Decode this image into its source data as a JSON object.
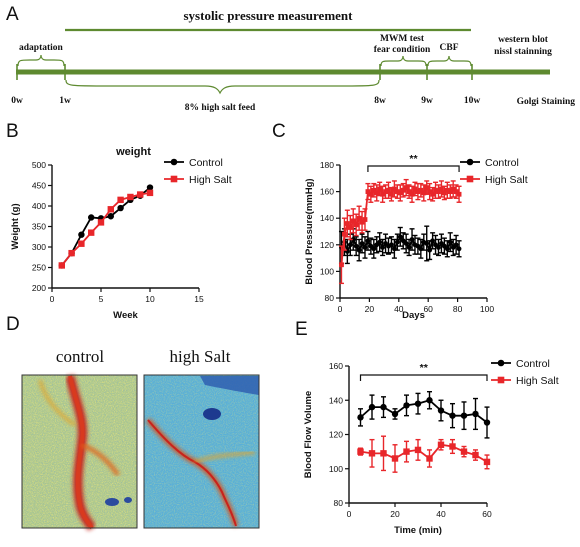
{
  "panels": {
    "a": "A",
    "b": "B",
    "c": "C",
    "d": "D",
    "e": "E"
  },
  "timeline": {
    "header": "systolic pressure measurement",
    "adaptation": "adaptation",
    "mwm_line1": "MWM test",
    "mwm_line2": "fear condition",
    "cbf": "CBF",
    "western": "western blot",
    "nissl": "nissl stainning",
    "feed": "8% high salt feed",
    "golgi": "Golgi Staining",
    "ticks": [
      "0w",
      "1w",
      "8w",
      "9w",
      "10w"
    ]
  },
  "images": {
    "control_label": "control",
    "highsalt_label": "high Salt"
  },
  "colors": {
    "timeline": "#5e8a30",
    "control": "#000000",
    "high_salt": "#e8262a"
  },
  "chart_data": [
    {
      "id": "weight",
      "type": "line",
      "title": "weight",
      "xlabel": "Week",
      "ylabel": "Weight (g)",
      "xlim": [
        0,
        15
      ],
      "ylim": [
        200,
        500
      ],
      "xticks": [
        0,
        5,
        10,
        15
      ],
      "yticks": [
        200,
        250,
        300,
        350,
        400,
        450,
        500
      ],
      "legend_position": "top-right",
      "series": [
        {
          "name": "Control",
          "marker": "circle",
          "color": "#000000",
          "x": [
            1,
            2,
            3,
            4,
            5,
            6,
            7,
            8,
            9,
            10
          ],
          "y": [
            255,
            285,
            330,
            372,
            370,
            375,
            395,
            415,
            425,
            445
          ]
        },
        {
          "name": "High Salt",
          "marker": "square",
          "color": "#e8262a",
          "x": [
            1,
            2,
            3,
            4,
            5,
            6,
            7,
            8,
            9,
            10
          ],
          "y": [
            255,
            285,
            308,
            335,
            360,
            392,
            415,
            422,
            428,
            432
          ]
        }
      ]
    },
    {
      "id": "blood-pressure",
      "type": "line",
      "xlabel": "Days",
      "ylabel": "Blood Pressure(mmHg)",
      "xlim": [
        0,
        100
      ],
      "ylim": [
        80,
        180
      ],
      "xticks": [
        0,
        20,
        40,
        60,
        80,
        100
      ],
      "yticks": [
        80,
        100,
        120,
        140,
        160,
        180
      ],
      "legend_position": "top-right",
      "annotation": "**",
      "series": [
        {
          "name": "Control",
          "marker": "circle",
          "color": "#000000",
          "x": [
            1,
            3,
            5,
            7,
            9,
            11,
            13,
            15,
            17,
            19,
            21,
            23,
            25,
            27,
            29,
            31,
            33,
            35,
            37,
            39,
            41,
            43,
            45,
            47,
            49,
            51,
            53,
            55,
            57,
            59,
            61,
            63,
            65,
            67,
            69,
            71,
            73,
            75,
            77,
            79,
            81
          ],
          "y": [
            118,
            122,
            115,
            120,
            124,
            119,
            116,
            121,
            118,
            123,
            119,
            117,
            120,
            122,
            118,
            121,
            119,
            120,
            117,
            122,
            126,
            123,
            121,
            118,
            124,
            120,
            119,
            117,
            122,
            121,
            116,
            123,
            120,
            118,
            121,
            119,
            117,
            122,
            118,
            120,
            117
          ],
          "err": [
            12,
            10,
            9,
            8,
            8,
            7,
            8,
            7,
            8,
            7,
            6,
            7,
            6,
            7,
            6,
            7,
            6,
            6,
            7,
            6,
            7,
            6,
            7,
            6,
            8,
            7,
            6,
            7,
            6,
            13,
            7,
            6,
            7,
            6,
            7,
            6,
            6,
            7,
            6,
            7,
            6
          ]
        },
        {
          "name": "High Salt",
          "marker": "square",
          "color": "#e8262a",
          "x": [
            1,
            3,
            5,
            7,
            9,
            11,
            13,
            15,
            17,
            19,
            21,
            23,
            25,
            27,
            29,
            31,
            33,
            35,
            37,
            39,
            41,
            43,
            45,
            47,
            49,
            51,
            53,
            55,
            57,
            59,
            61,
            63,
            65,
            67,
            69,
            71,
            73,
            75,
            77,
            79,
            81
          ],
          "y": [
            105,
            128,
            136,
            133,
            138,
            135,
            140,
            137,
            139,
            160,
            158,
            161,
            159,
            162,
            158,
            160,
            161,
            158,
            162,
            160,
            159,
            161,
            163,
            160,
            158,
            162,
            160,
            161,
            159,
            163,
            160,
            158,
            161,
            160,
            162,
            159,
            161,
            160,
            162,
            160,
            158
          ],
          "err": [
            14,
            12,
            10,
            9,
            9,
            8,
            9,
            8,
            8,
            6,
            6,
            5,
            6,
            5,
            6,
            5,
            6,
            5,
            6,
            5,
            6,
            5,
            6,
            5,
            6,
            5,
            6,
            5,
            6,
            5,
            6,
            5,
            6,
            5,
            6,
            5,
            6,
            5,
            6,
            5,
            6
          ]
        }
      ]
    },
    {
      "id": "blood-flow",
      "type": "line",
      "xlabel": "Time (min)",
      "ylabel": "Blood Flow Volume",
      "xlim": [
        0,
        60
      ],
      "ylim": [
        80,
        160
      ],
      "xticks": [
        0,
        20,
        40,
        60
      ],
      "yticks": [
        80,
        100,
        120,
        140,
        160
      ],
      "legend_position": "top-right",
      "annotation": "**",
      "series": [
        {
          "name": "Control",
          "marker": "circle",
          "color": "#000000",
          "x": [
            5,
            10,
            15,
            20,
            25,
            30,
            35,
            40,
            45,
            50,
            55,
            60
          ],
          "y": [
            130,
            136,
            136,
            132,
            137,
            138,
            140,
            134,
            131,
            131,
            132,
            127
          ],
          "err": [
            5,
            7,
            6,
            3,
            6,
            6,
            5,
            6,
            7,
            8,
            9,
            9
          ]
        },
        {
          "name": "High Salt",
          "marker": "square",
          "color": "#e8262a",
          "x": [
            5,
            10,
            15,
            20,
            25,
            30,
            35,
            40,
            45,
            50,
            55,
            60
          ],
          "y": [
            110,
            109,
            109,
            106,
            110,
            111,
            106,
            114,
            113,
            110,
            108,
            104
          ],
          "err": [
            2,
            8,
            10,
            8,
            6,
            6,
            5,
            3,
            4,
            3,
            3,
            4
          ]
        }
      ]
    }
  ]
}
